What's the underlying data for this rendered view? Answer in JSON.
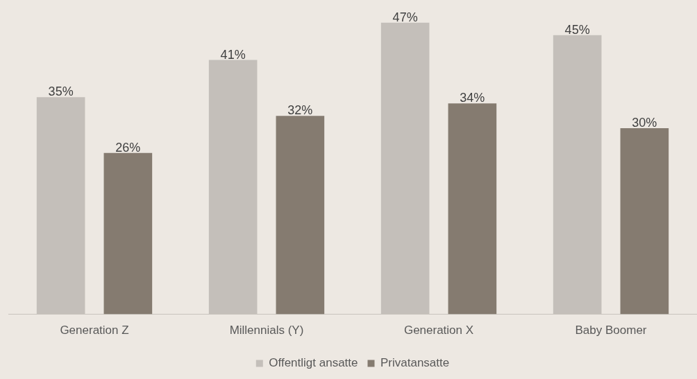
{
  "chart_data": {
    "type": "bar",
    "categories": [
      "Generation Z",
      "Millennials (Y)",
      "Generation X",
      "Baby Boomer"
    ],
    "series": [
      {
        "name": "Offentligt ansatte",
        "color": "#c4bfba",
        "values": [
          35,
          41,
          47,
          45
        ],
        "value_labels": [
          "35%",
          "41%",
          "47%",
          "45%"
        ]
      },
      {
        "name": "Privatansatte",
        "color": "#857b70",
        "values": [
          26,
          32,
          34,
          30
        ],
        "value_labels": [
          "26%",
          "32%",
          "34%",
          "30%"
        ]
      }
    ],
    "grid": false,
    "legend": "bottom"
  }
}
